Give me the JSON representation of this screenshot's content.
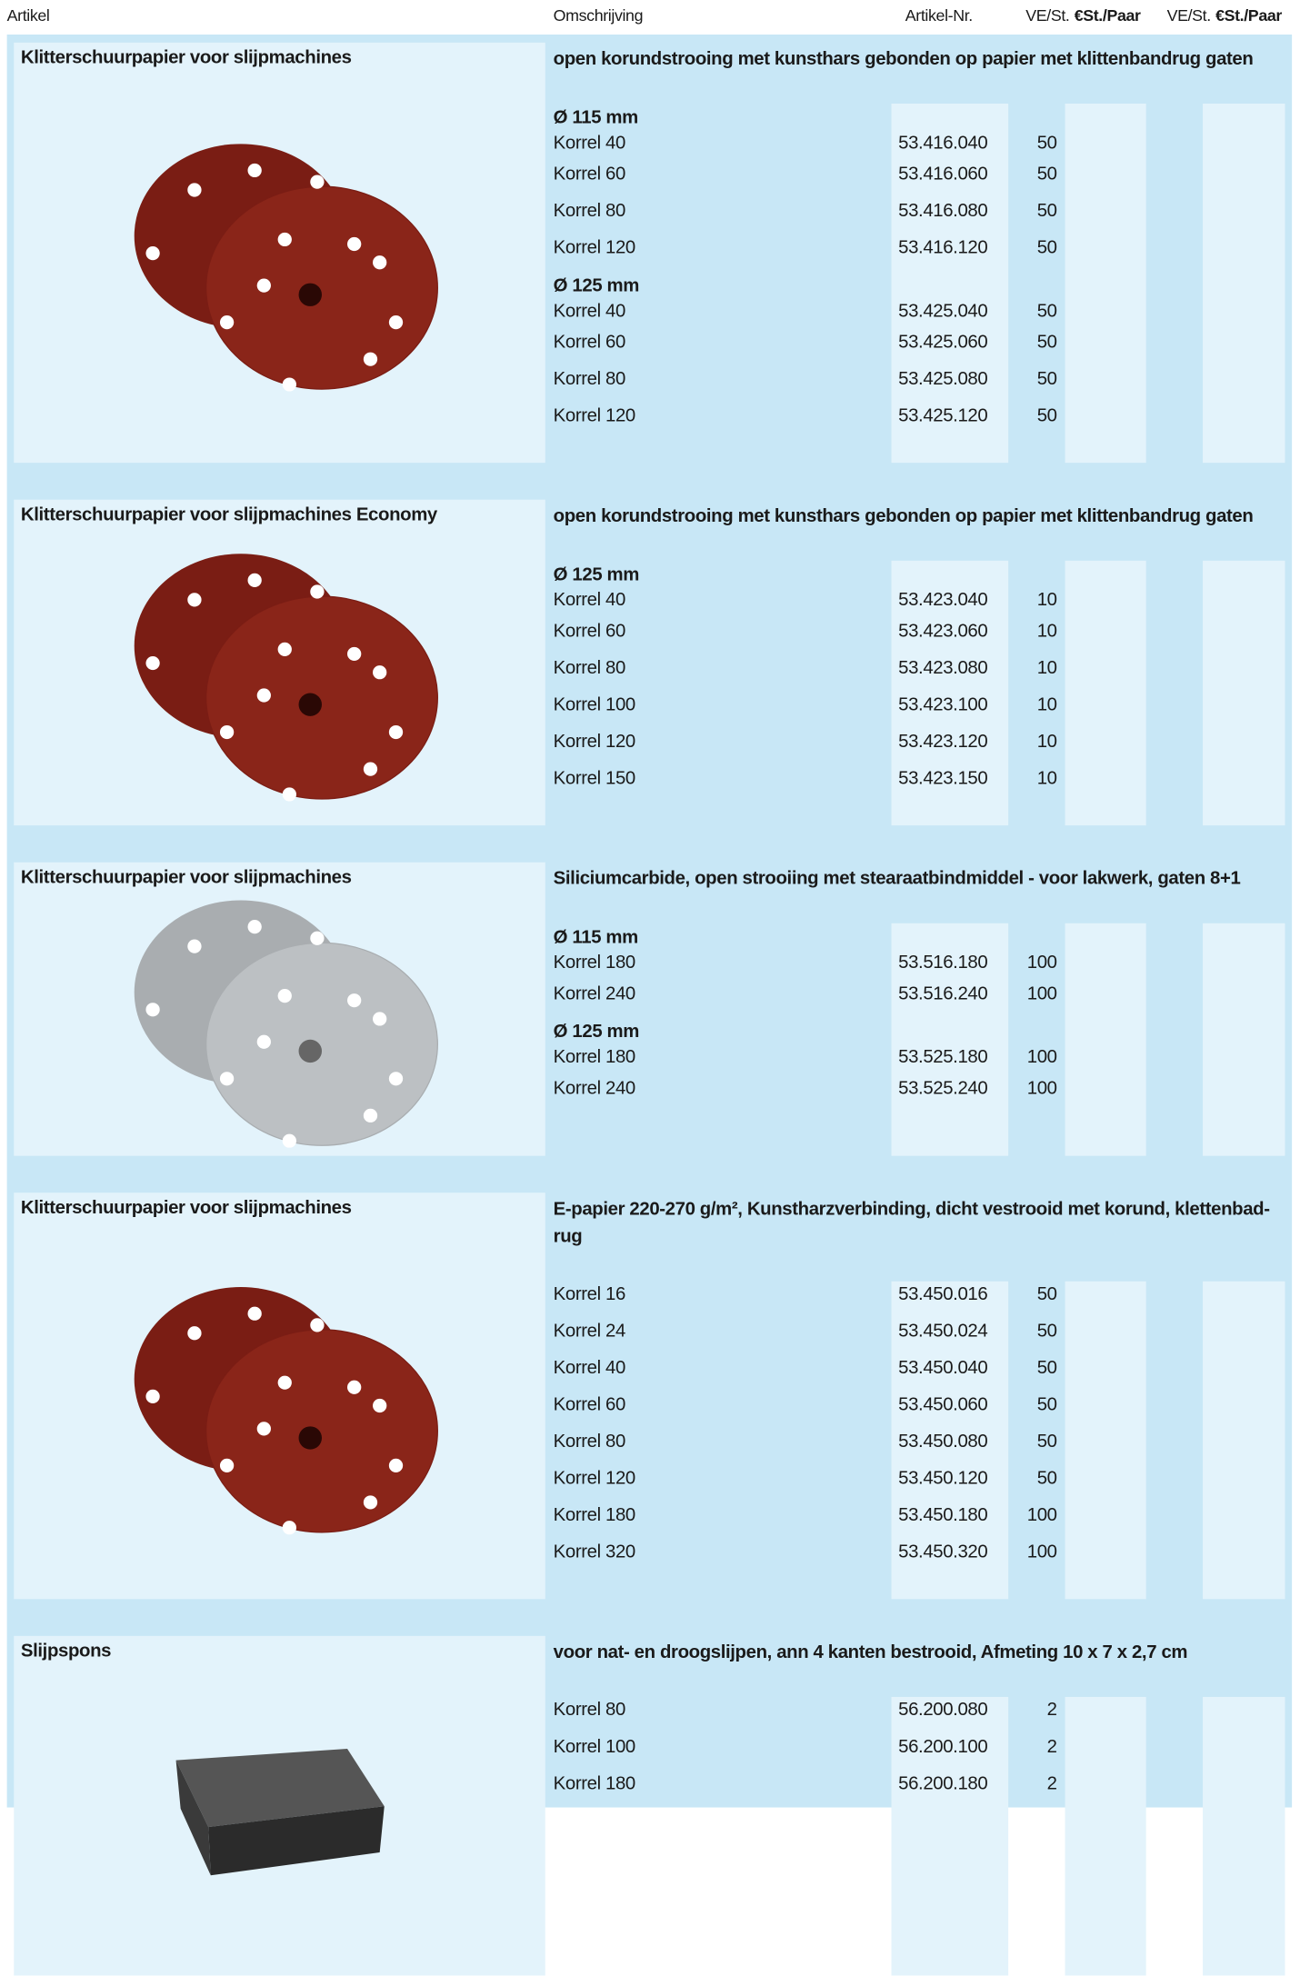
{
  "header": {
    "columns": [
      "Artikel",
      "Omschrijving",
      "Artikel-Nr.",
      "VE/St.",
      "€St./Paar",
      "VE/St.",
      "€St./Paar"
    ]
  },
  "sections": [
    {
      "title": "Klitterschuurpapier voor slijpmachines",
      "description": "open korundstrooing met kunsthars gebonden op papier met klittenbandrug gaten",
      "groups": [
        {
          "size": "Ø 115 mm",
          "rows": [
            {
              "name": "Korrel 40",
              "number": "53.416.040",
              "ve": 50
            },
            {
              "name": "Korrel 60",
              "number": "53.416.060",
              "ve": 50
            },
            {
              "name": "Korrel 80",
              "number": "53.416.080",
              "ve": 50
            },
            {
              "name": "Korrel 120",
              "number": "53.416.120",
              "ve": 50
            }
          ]
        },
        {
          "size": "Ø 125 mm",
          "rows": [
            {
              "name": "Korrel 40",
              "number": "53.425.040",
              "ve": 50
            },
            {
              "name": "Korrel 60",
              "number": "53.425.060",
              "ve": 50
            },
            {
              "name": "Korrel 80",
              "number": "53.425.080",
              "ve": 50
            },
            {
              "name": "Korrel 120",
              "number": "53.425.120",
              "ve": 50
            }
          ]
        }
      ]
    },
    {
      "title": "Klitterschuurpapier voor slijpmachines Economy",
      "description": "open korundstrooing met kunsthars gebonden op papier met klittenbandrug gaten",
      "groups": [
        {
          "size": "Ø 125 mm",
          "rows": [
            {
              "name": "Korrel 40",
              "number": "53.423.040",
              "ve": 10
            },
            {
              "name": "Korrel 60",
              "number": "53.423.060",
              "ve": 10
            },
            {
              "name": "Korrel 80",
              "number": "53.423.080",
              "ve": 10
            },
            {
              "name": "Korrel 100",
              "number": "53.423.100",
              "ve": 10
            },
            {
              "name": "Korrel 120",
              "number": "53.423.120",
              "ve": 10
            },
            {
              "name": "Korrel 150",
              "number": "53.423.150",
              "ve": 10
            }
          ]
        }
      ]
    },
    {
      "title": "Klitterschuurpapier voor slijpmachines",
      "description": "Siliciumcarbide, open strooiing met stearaatbindmiddel - voor lakwerk, gaten 8+1",
      "groups": [
        {
          "size": "Ø 115 mm",
          "rows": [
            {
              "name": "Korrel 180",
              "number": "53.516.180",
              "ve": 100
            },
            {
              "name": "Korrel 240",
              "number": "53.516.240",
              "ve": 100
            }
          ]
        },
        {
          "size": "Ø 125 mm",
          "rows": [
            {
              "name": "Korrel 180",
              "number": "53.525.180",
              "ve": 100
            },
            {
              "name": "Korrel 240",
              "number": "53.525.240",
              "ve": 100
            }
          ]
        }
      ]
    },
    {
      "title": "Klitterschuurpapier voor slijpmachines",
      "description": "E-papier 220-270 g/m², Kunstharzverbinding, dicht vestrooid met korund, klettenbad-rug",
      "groups": [
        {
          "rows": [
            {
              "name": "Korrel 16",
              "number": "53.450.016",
              "ve": 50
            },
            {
              "name": "Korrel 24",
              "number": "53.450.024",
              "ve": 50
            },
            {
              "name": "Korrel 40",
              "number": "53.450.040",
              "ve": 50
            },
            {
              "name": "Korrel 60",
              "number": "53.450.060",
              "ve": 50
            },
            {
              "name": "Korrel 80",
              "number": "53.450.080",
              "ve": 50
            },
            {
              "name": "Korrel 120",
              "number": "53.450.120",
              "ve": 50
            },
            {
              "name": "Korrel 180",
              "number": "53.450.180",
              "ve": 100
            },
            {
              "name": "Korrel 320",
              "number": "53.450.320",
              "ve": 100
            }
          ]
        }
      ]
    },
    {
      "title": "Slijpspons",
      "description": "voor nat- en droogslijpen, ann 4 kanten bestrooid, Afmeting 10 x 7 x 2,7 cm",
      "groups": [
        {
          "rows": [
            {
              "name": "Korrel 80",
              "number": "56.200.080",
              "ve": 2
            },
            {
              "name": "Korrel 100",
              "number": "56.200.100",
              "ve": 2
            },
            {
              "name": "Korrel 180",
              "number": "56.200.180",
              "ve": 2
            }
          ]
        }
      ]
    }
  ]
}
